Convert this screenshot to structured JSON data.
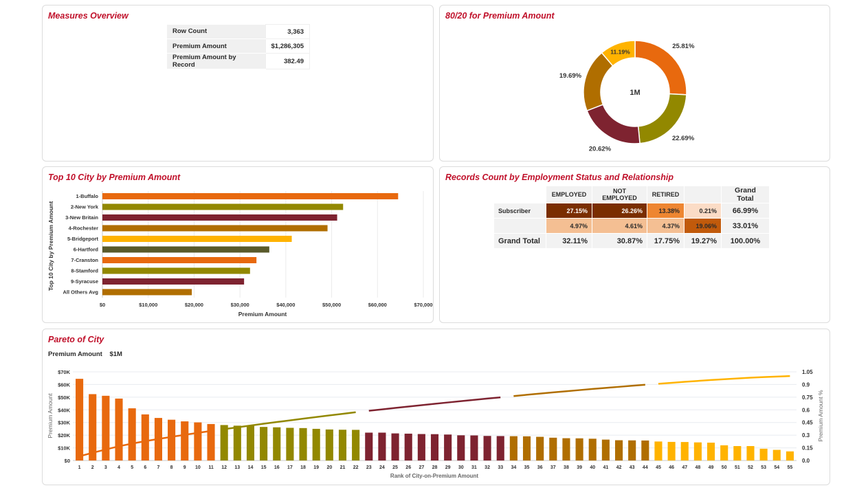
{
  "measures": {
    "title": "Measures Overview",
    "rows": [
      {
        "label": "Row Count",
        "value": "3,363"
      },
      {
        "label": "Premium Amount",
        "value": "$1,286,305"
      },
      {
        "label": "Premium Amount by Record",
        "value": "382.49"
      }
    ]
  },
  "pivot": {
    "title": "Records Count by Employment Status and Relationship",
    "columns": [
      "EMPLOYED",
      "NOT EMPLOYED",
      "RETIRED",
      "",
      "Grand Total"
    ],
    "rows": [
      {
        "label": "Subscriber",
        "cells": [
          "27.15%",
          "26.26%",
          "13.38%",
          "0.21%"
        ],
        "colors": [
          "#7a2e00",
          "#7a2e00",
          "#ee8631",
          "#fbdcc6"
        ],
        "text_colors": [
          "#ffffff",
          "#ffffff",
          "#2a2a2a",
          "#2a2a2a"
        ],
        "total": "66.99%"
      },
      {
        "label": "",
        "cells": [
          "4.97%",
          "4.61%",
          "4.37%",
          "19.06%"
        ],
        "colors": [
          "#f4bf93",
          "#f4bf93",
          "#f4bf93",
          "#c15a0b"
        ],
        "text_colors": [
          "#2a2a2a",
          "#2a2a2a",
          "#2a2a2a",
          "#2a2a2a"
        ],
        "total": "33.01%"
      }
    ],
    "grand_total": {
      "label": "Grand Total",
      "cells": [
        "32.11%",
        "30.87%",
        "17.75%",
        "19.27%"
      ],
      "total": "100.00%"
    }
  },
  "pareto_header": {
    "measure_label": "Premium Amount",
    "measure_value": "$1M"
  },
  "chart_data": [
    {
      "id": "donut",
      "type": "pie",
      "title": "80/20 for Premium Amount",
      "center_label": "1M",
      "slices": [
        {
          "label": "25.81%",
          "value": 25.81,
          "color": "#e8690e"
        },
        {
          "label": "22.69%",
          "value": 22.69,
          "color": "#928800"
        },
        {
          "label": "20.62%",
          "value": 20.62,
          "color": "#7e2330"
        },
        {
          "label": "19.69%",
          "value": 19.69,
          "color": "#b06e00"
        },
        {
          "label": "11.19%",
          "value": 11.19,
          "color": "#ffb300"
        }
      ]
    },
    {
      "id": "top10",
      "type": "bar",
      "orientation": "horizontal",
      "title": "Top 10 City by Premium Amount",
      "xlabel": "Premium Amount",
      "ylabel": "Top 10 City by Premium Amount",
      "xlim": [
        0,
        70000
      ],
      "xticks": [
        "$0",
        "$10,000",
        "$20,000",
        "$30,000",
        "$40,000",
        "$50,000",
        "$60,000",
        "$70,000"
      ],
      "categories": [
        "1-Buffalo",
        "2-New York",
        "3-New Britain",
        "4-Rochester",
        "5-Bridgeport",
        "6-Hartford",
        "7-Cranston",
        "8-Stamford",
        "9-Syracuse",
        "All Others Avg"
      ],
      "values": [
        64500,
        52500,
        51200,
        49100,
        41300,
        36400,
        33600,
        32200,
        30900,
        19500
      ],
      "colors": [
        "#e8690e",
        "#928800",
        "#7e2330",
        "#b06e00",
        "#ffb300",
        "#595a2b",
        "#e8690e",
        "#928800",
        "#7e2330",
        "#b06e00"
      ]
    },
    {
      "id": "pareto",
      "type": "bar",
      "title": "Pareto of City",
      "xlabel": "Rank of City-on-Premium Amount",
      "ylabel": "Premium Amount",
      "y2label": "Premium Amount %",
      "ylim": [
        0,
        70000
      ],
      "y2lim": [
        0,
        1.05
      ],
      "yticks": [
        "$0",
        "$10K",
        "$20K",
        "$30K",
        "$40K",
        "$50K",
        "$60K",
        "$70K"
      ],
      "y2ticks": [
        "0.0",
        "0.15",
        "0.3",
        "0.45",
        "0.6",
        "0.75",
        "0.9",
        "1.05"
      ],
      "categories": [
        "1",
        "2",
        "3",
        "4",
        "5",
        "6",
        "7",
        "8",
        "9",
        "10",
        "11",
        "12",
        "13",
        "14",
        "15",
        "16",
        "17",
        "18",
        "19",
        "20",
        "21",
        "22",
        "23",
        "24",
        "25",
        "26",
        "27",
        "28",
        "29",
        "30",
        "31",
        "32",
        "33",
        "34",
        "35",
        "36",
        "37",
        "38",
        "39",
        "40",
        "41",
        "42",
        "43",
        "44",
        "45",
        "46",
        "47",
        "48",
        "49",
        "50",
        "51",
        "52",
        "53",
        "54",
        "55"
      ],
      "values": [
        64500,
        52400,
        51100,
        48900,
        41200,
        36400,
        33600,
        32200,
        30900,
        30100,
        28800,
        28000,
        27500,
        27500,
        26500,
        26200,
        25800,
        25600,
        25000,
        24500,
        24300,
        24200,
        22000,
        22000,
        21400,
        21200,
        20900,
        20800,
        20500,
        19900,
        19800,
        19400,
        19300,
        19200,
        19100,
        18700,
        18000,
        17600,
        17500,
        17200,
        16500,
        16000,
        15900,
        15800,
        15000,
        14700,
        14600,
        14300,
        14100,
        12000,
        11400,
        11400,
        9300,
        8400,
        7200
      ],
      "groups": [
        {
          "from": 1,
          "to": 11,
          "color": "#e8690e"
        },
        {
          "from": 12,
          "to": 22,
          "color": "#928800"
        },
        {
          "from": 23,
          "to": 33,
          "color": "#7e2330"
        },
        {
          "from": 34,
          "to": 44,
          "color": "#b06e00"
        },
        {
          "from": 45,
          "to": 55,
          "color": "#ffb300"
        }
      ],
      "cumulative_line": "cumulative share of Premium Amount, drawn per group segment"
    }
  ]
}
